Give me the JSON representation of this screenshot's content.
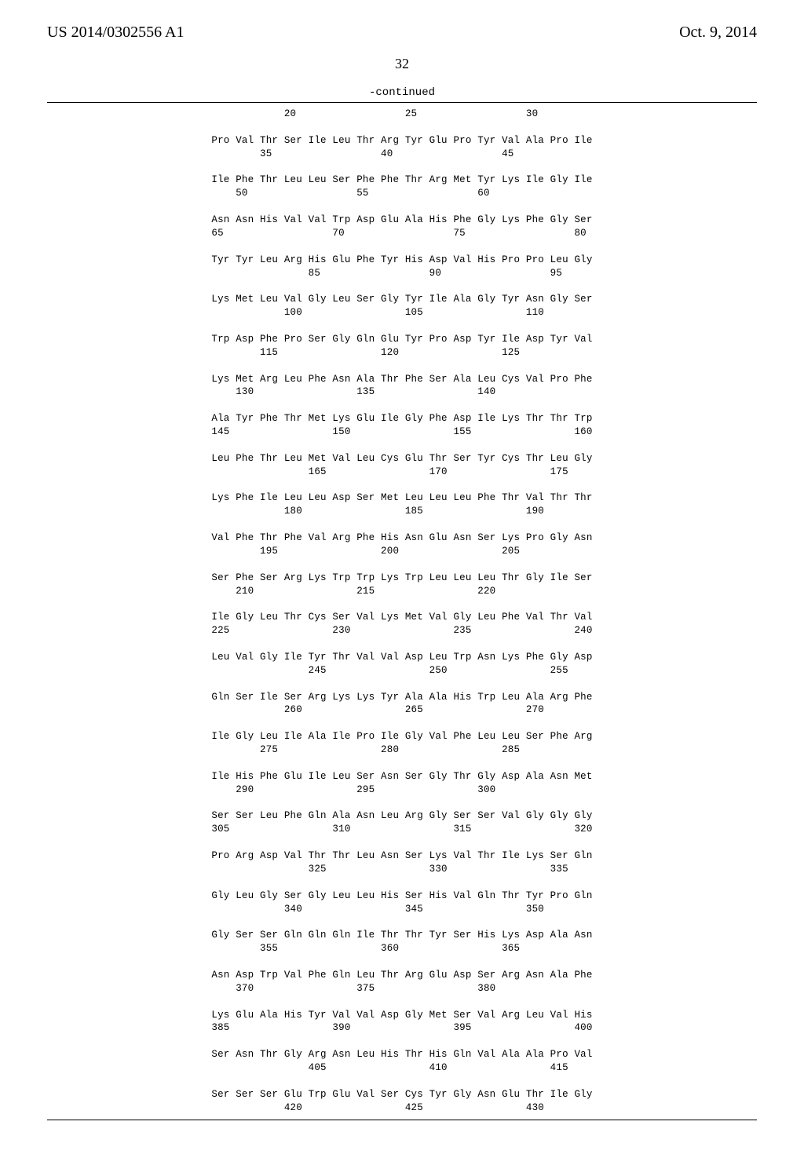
{
  "header": {
    "left": "US 2014/0302556 A1",
    "right": "Oct. 9, 2014"
  },
  "page_number": "32",
  "continued_label": "-continued",
  "sequence_font": {
    "family": "Courier New",
    "size_pt": 12.5,
    "color": "#000000"
  },
  "rule_color": "#000000",
  "background_color": "#ffffff",
  "sequence_lines": [
    "            20                  25                  30",
    "",
    "Pro Val Thr Ser Ile Leu Thr Arg Tyr Glu Pro Tyr Val Ala Pro Ile",
    "        35                  40                  45",
    "",
    "Ile Phe Thr Leu Leu Ser Phe Phe Thr Arg Met Tyr Lys Ile Gly Ile",
    "    50                  55                  60",
    "",
    "Asn Asn His Val Val Trp Asp Glu Ala His Phe Gly Lys Phe Gly Ser",
    "65                  70                  75                  80",
    "",
    "Tyr Tyr Leu Arg His Glu Phe Tyr His Asp Val His Pro Pro Leu Gly",
    "                85                  90                  95",
    "",
    "Lys Met Leu Val Gly Leu Ser Gly Tyr Ile Ala Gly Tyr Asn Gly Ser",
    "            100                 105                 110",
    "",
    "Trp Asp Phe Pro Ser Gly Gln Glu Tyr Pro Asp Tyr Ile Asp Tyr Val",
    "        115                 120                 125",
    "",
    "Lys Met Arg Leu Phe Asn Ala Thr Phe Ser Ala Leu Cys Val Pro Phe",
    "    130                 135                 140",
    "",
    "Ala Tyr Phe Thr Met Lys Glu Ile Gly Phe Asp Ile Lys Thr Thr Trp",
    "145                 150                 155                 160",
    "",
    "Leu Phe Thr Leu Met Val Leu Cys Glu Thr Ser Tyr Cys Thr Leu Gly",
    "                165                 170                 175",
    "",
    "Lys Phe Ile Leu Leu Asp Ser Met Leu Leu Leu Phe Thr Val Thr Thr",
    "            180                 185                 190",
    "",
    "Val Phe Thr Phe Val Arg Phe His Asn Glu Asn Ser Lys Pro Gly Asn",
    "        195                 200                 205",
    "",
    "Ser Phe Ser Arg Lys Trp Trp Lys Trp Leu Leu Leu Thr Gly Ile Ser",
    "    210                 215                 220",
    "",
    "Ile Gly Leu Thr Cys Ser Val Lys Met Val Gly Leu Phe Val Thr Val",
    "225                 230                 235                 240",
    "",
    "Leu Val Gly Ile Tyr Thr Val Val Asp Leu Trp Asn Lys Phe Gly Asp",
    "                245                 250                 255",
    "",
    "Gln Ser Ile Ser Arg Lys Lys Tyr Ala Ala His Trp Leu Ala Arg Phe",
    "            260                 265                 270",
    "",
    "Ile Gly Leu Ile Ala Ile Pro Ile Gly Val Phe Leu Leu Ser Phe Arg",
    "        275                 280                 285",
    "",
    "Ile His Phe Glu Ile Leu Ser Asn Ser Gly Thr Gly Asp Ala Asn Met",
    "    290                 295                 300",
    "",
    "Ser Ser Leu Phe Gln Ala Asn Leu Arg Gly Ser Ser Val Gly Gly Gly",
    "305                 310                 315                 320",
    "",
    "Pro Arg Asp Val Thr Thr Leu Asn Ser Lys Val Thr Ile Lys Ser Gln",
    "                325                 330                 335",
    "",
    "Gly Leu Gly Ser Gly Leu Leu His Ser His Val Gln Thr Tyr Pro Gln",
    "            340                 345                 350",
    "",
    "Gly Ser Ser Gln Gln Gln Ile Thr Thr Tyr Ser His Lys Asp Ala Asn",
    "        355                 360                 365",
    "",
    "Asn Asp Trp Val Phe Gln Leu Thr Arg Glu Asp Ser Arg Asn Ala Phe",
    "    370                 375                 380",
    "",
    "Lys Glu Ala His Tyr Val Val Asp Gly Met Ser Val Arg Leu Val His",
    "385                 390                 395                 400",
    "",
    "Ser Asn Thr Gly Arg Asn Leu His Thr His Gln Val Ala Ala Pro Val",
    "                405                 410                 415",
    "",
    "Ser Ser Ser Glu Trp Glu Val Ser Cys Tyr Gly Asn Glu Thr Ile Gly",
    "            420                 425                 430"
  ]
}
